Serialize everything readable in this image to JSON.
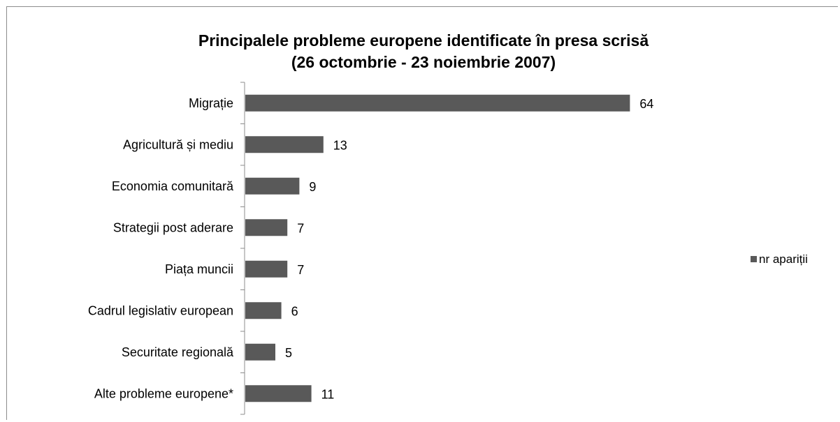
{
  "chart_data": {
    "type": "bar",
    "orientation": "horizontal",
    "title": "Principalele probleme europene identificate în presa scrisă",
    "subtitle": "(26 octombrie - 23 noiembrie 2007)",
    "categories": [
      "Migrație",
      "Agricultură și mediu",
      "Economia comunitară",
      "Strategii post aderare",
      "Piața muncii",
      "Cadrul legislativ european",
      "Securitate regională",
      "Alte probleme europene*"
    ],
    "series": [
      {
        "name": "nr apariții",
        "values": [
          64,
          13,
          9,
          7,
          7,
          6,
          5,
          11
        ]
      }
    ],
    "xlim": [
      0,
      70
    ],
    "grid": false,
    "data_labels": true,
    "legend_position": "right",
    "bar_color": "#595959"
  }
}
